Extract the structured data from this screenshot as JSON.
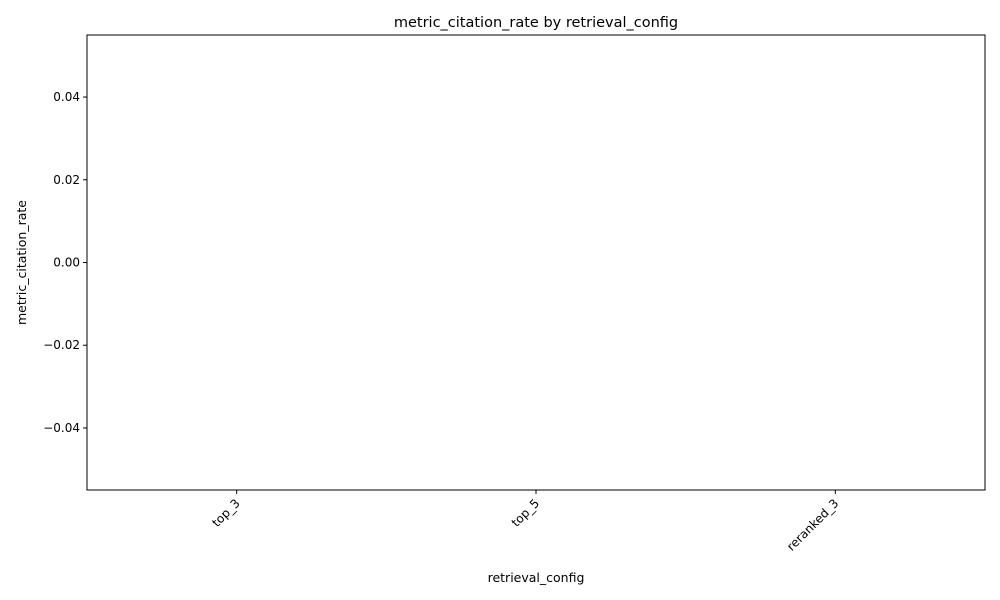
{
  "chart_data": {
    "type": "bar",
    "title": "metric_citation_rate by retrieval_config",
    "xlabel": "retrieval_config",
    "ylabel": "metric_citation_rate",
    "categories": [
      "top_3",
      "top_5",
      "reranked_3"
    ],
    "values": [
      0,
      0,
      0
    ],
    "ylim": [
      -0.055,
      0.055
    ],
    "yticks": [
      {
        "value": 0.04,
        "label": "0.04"
      },
      {
        "value": 0.02,
        "label": "0.02"
      },
      {
        "value": 0.0,
        "label": "0.00"
      },
      {
        "value": -0.02,
        "label": "−0.02"
      },
      {
        "value": -0.04,
        "label": "−0.04"
      }
    ],
    "grid": false,
    "legend": "none",
    "x_tick_rotation": 45,
    "bar_color": "#1f77b4"
  }
}
